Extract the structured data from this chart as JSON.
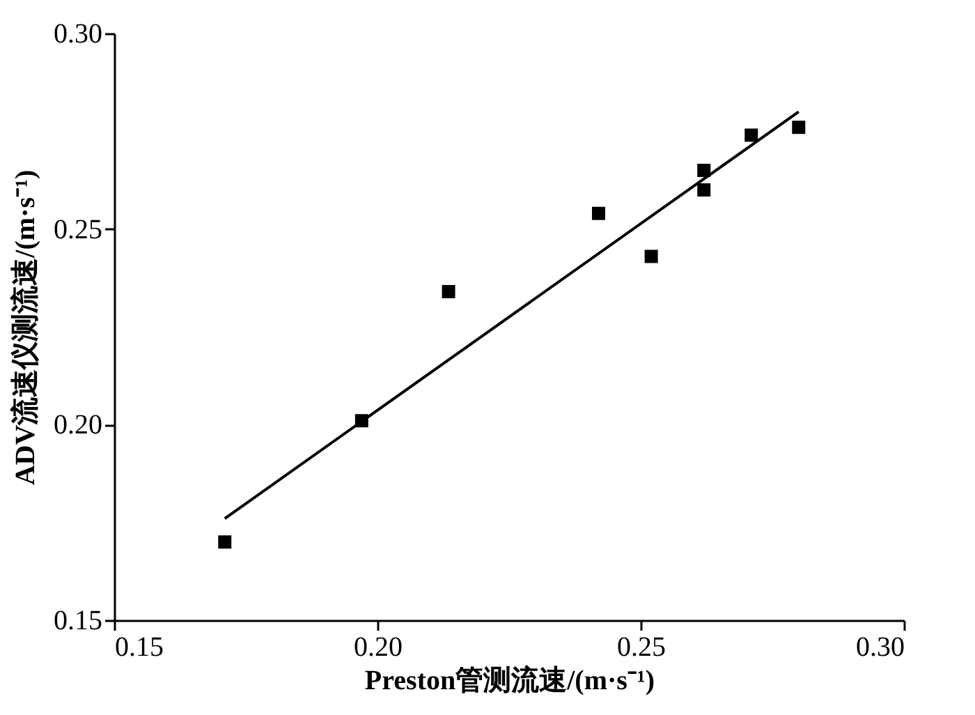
{
  "chart_data": {
    "type": "scatter",
    "xlabel": "Preston管测流速/(m·s⁻¹)",
    "ylabel": "ADV流速仪测流速/(m·s⁻¹)",
    "xlim": [
      0.15,
      0.3
    ],
    "ylim": [
      0.15,
      0.3
    ],
    "xticks": [
      0.15,
      {
        "value": 0.2,
        "label": "0.20"
      },
      0.25,
      {
        "value": 0.3,
        "label": "0.30"
      }
    ],
    "yticks": [
      0.15,
      {
        "value": 0.2,
        "label": "0.20"
      },
      0.25,
      {
        "value": 0.3,
        "label": "0.30"
      }
    ],
    "grid": false,
    "series": [
      {
        "marker": "square",
        "color": "#000000",
        "x": [
          0.171,
          0.197,
          0.2135,
          0.242,
          0.252,
          0.262,
          0.262,
          0.271,
          0.28
        ],
        "values": [
          0.17,
          0.201,
          0.234,
          0.254,
          0.243,
          0.265,
          0.26,
          0.274,
          0.276
        ]
      },
      {
        "type": "line",
        "color": "#000000",
        "line_style": "solid",
        "x": [
          0.171,
          0.28
        ],
        "values": [
          0.176,
          0.28
        ]
      }
    ]
  }
}
